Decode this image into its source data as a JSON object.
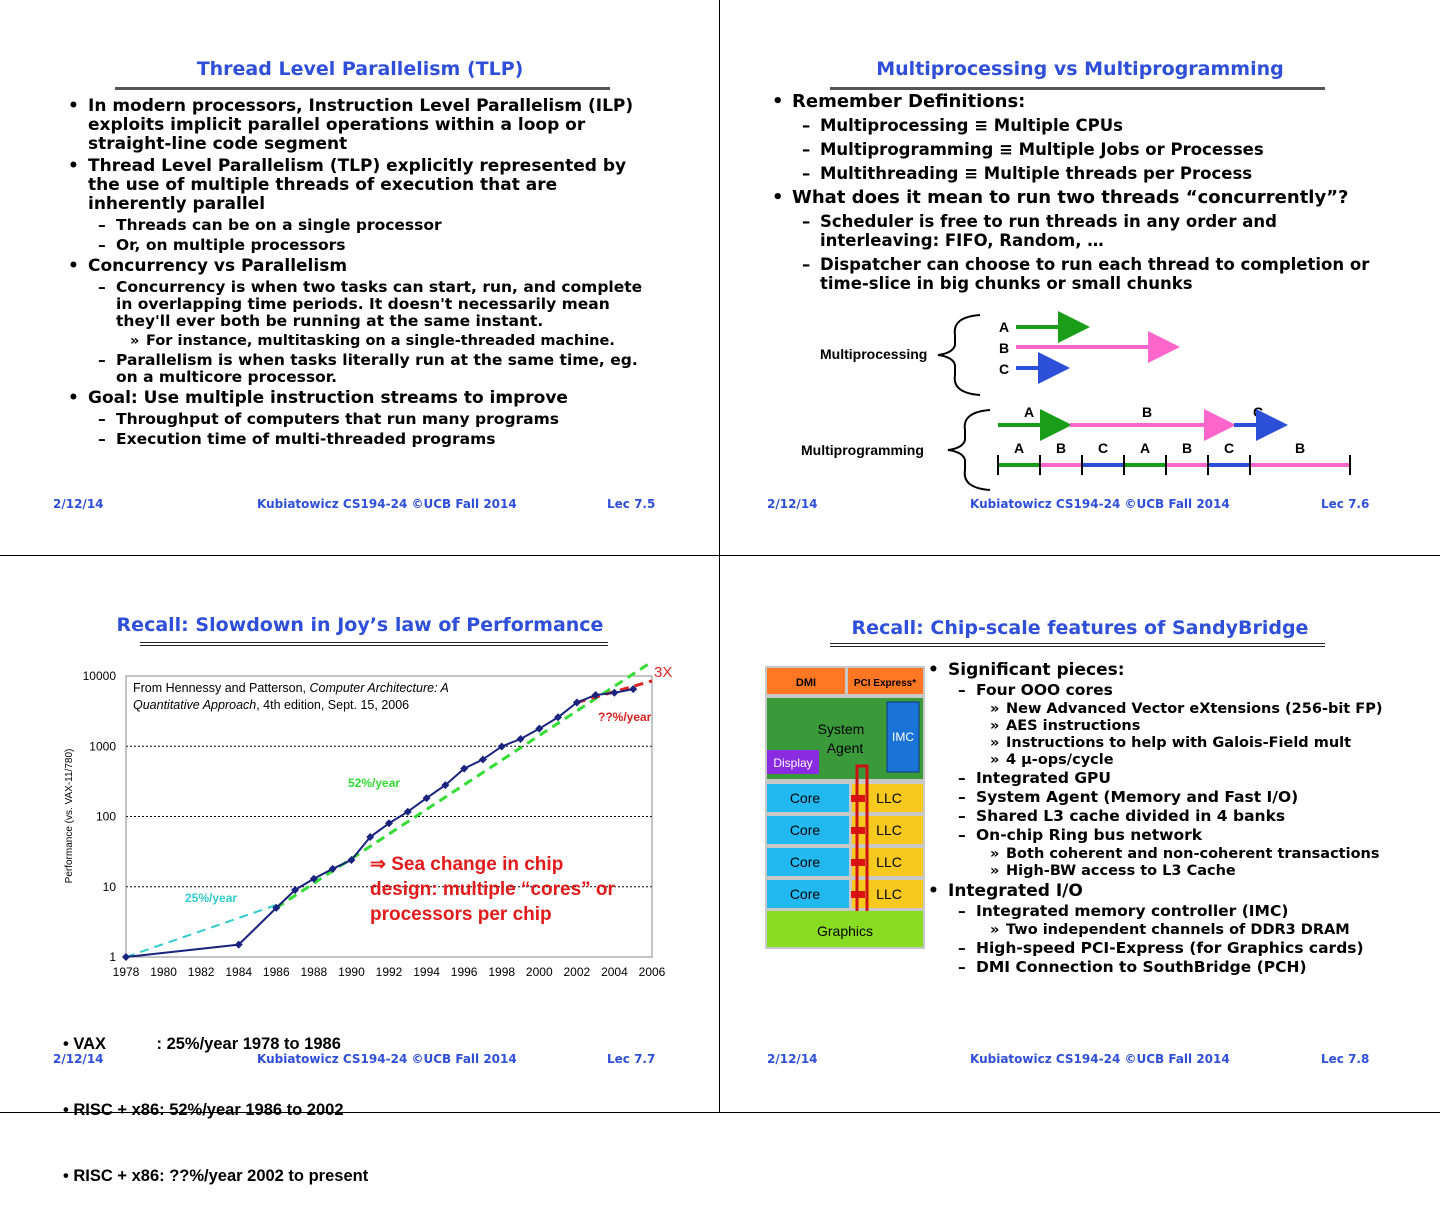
{
  "slides": [
    {
      "title": "Thread Level Parallelism (TLP)",
      "items": [
        {
          "level": 1,
          "text": "In modern processors, Instruction Level Parallelism (ILP) exploits implicit parallel operations within a loop or straight-line code segment"
        },
        {
          "level": 1,
          "text": "Thread Level Parallelism (TLP) explicitly represented by the use of multiple threads of execution that are inherently parallel"
        },
        {
          "level": 2,
          "text": "Threads can  be on a single processor"
        },
        {
          "level": 2,
          "text": "Or, on multiple processors"
        },
        {
          "level": 1,
          "text": "Concurrency vs Parallelism"
        },
        {
          "level": 2,
          "text": "Concurrency is when two tasks can start, run, and complete in overlapping time periods. It doesn't necessarily mean they'll ever both be running at the same instant."
        },
        {
          "level": 3,
          "text": "For instance, multitasking on a single-threaded machine."
        },
        {
          "level": 2,
          "text": "Parallelism is when tasks literally run at the same time, eg. on a multicore processor."
        },
        {
          "level": 1,
          "text": "Goal: Use multiple instruction streams to improve"
        },
        {
          "level": 2,
          "text": "Throughput of computers that run many programs"
        },
        {
          "level": 2,
          "text": "Execution time of multi-threaded programs"
        }
      ],
      "footer": {
        "date": "2/12/14",
        "course": "Kubiatowicz CS194-24 ©UCB Fall 2014",
        "lec": "Lec 7.5"
      }
    },
    {
      "title": "Multiprocessing vs Multiprogramming",
      "items": [
        {
          "level": 1,
          "text": "Remember Definitions:"
        },
        {
          "level": 2,
          "text": "Multiprocessing ≡ Multiple CPUs"
        },
        {
          "level": 2,
          "text": "Multiprogramming ≡ Multiple Jobs or Processes"
        },
        {
          "level": 2,
          "text": "Multithreading ≡ Multiple threads per Process"
        },
        {
          "level": 1,
          "text": "What does it mean to run two threads “concurrently”?"
        },
        {
          "level": 2,
          "text": "Scheduler is free to run threads in any order and interleaving: FIFO, Random, …"
        },
        {
          "level": 2,
          "text": "Dispatcher can choose to run each thread to completion or time-slice in big chunks or small chunks"
        }
      ],
      "diagram": {
        "multiprocessing_label": "Multiprocessing",
        "multiprogramming_label": "Multiprogramming",
        "threads": [
          "A",
          "B",
          "C"
        ],
        "sequential": [
          "A",
          "B",
          "C"
        ],
        "timeslices": [
          "A",
          "B",
          "C",
          "A",
          "B",
          "C",
          "B"
        ],
        "colors": {
          "A": "#1a9e1a",
          "B": "#ff66cc",
          "C": "#2b4fd6"
        }
      },
      "footer": {
        "date": "2/12/14",
        "course": "Kubiatowicz CS194-24 ©UCB Fall 2014",
        "lec": "Lec 7.6"
      }
    },
    {
      "title": "Recall: Slowdown in Joy’s law of Performance",
      "citation_line1_plain": "From Hennessy and Patterson, ",
      "citation_line1_italic": "Computer Architecture: A",
      "citation_line2_italic": "Quantitative Approach",
      "citation_line2_plain": ", 4th edition, Sept. 15, 2006",
      "callout": [
        "⇒ Sea change in chip",
        "design: multiple “cores” or",
        "processors per chip"
      ],
      "bullets": [
        "• VAX           : 25%/year 1978 to 1986",
        "• RISC + x86: 52%/year 1986 to 2002",
        "• RISC + x86: ??%/year 2002 to present"
      ],
      "chart_data": {
        "type": "line",
        "ylabel": "Performance (vs. VAX-11/780)",
        "yscale": "log",
        "ylim": [
          1,
          10000
        ],
        "yticks": [
          "1",
          "10",
          "100",
          "1000",
          "10000"
        ],
        "xlim": [
          1978,
          2006
        ],
        "xticks": [
          "1978",
          "1980",
          "1982",
          "1984",
          "1986",
          "1988",
          "1990",
          "1992",
          "1994",
          "1996",
          "1998",
          "2000",
          "2002",
          "2004",
          "2006"
        ],
        "series": [
          {
            "values": [
              [
                1978,
                1
              ],
              [
                1984,
                1.5
              ],
              [
                1986,
                5
              ],
              [
                1987,
                9
              ],
              [
                1988,
                13
              ],
              [
                1989,
                18
              ],
              [
                1990,
                24
              ],
              [
                1991,
                51
              ],
              [
                1992,
                80
              ],
              [
                1993,
                117
              ],
              [
                1994,
                183
              ],
              [
                1995,
                280
              ],
              [
                1996,
                481
              ],
              [
                1997,
                649
              ],
              [
                1998,
                993
              ],
              [
                1999,
                1267
              ],
              [
                2000,
                1779
              ],
              [
                2001,
                2584
              ],
              [
                2002,
                4195
              ],
              [
                2003,
                5364
              ],
              [
                2004,
                5764
              ],
              [
                2005,
                6505
              ]
            ],
            "color": "#1a237e"
          }
        ],
        "trendlines": [
          {
            "label": "25%/year",
            "from": [
              1978,
              1
            ],
            "to": [
              1986,
              5.5
            ],
            "color": "#33cccc"
          },
          {
            "label": "52%/year",
            "from": [
              1986,
              5
            ],
            "to": [
              2006,
              16000
            ],
            "color": "#33dd33"
          },
          {
            "label": "??%/year",
            "from": [
              2002,
              4195
            ],
            "to": [
              2006,
              8500
            ],
            "color": "#dd2222"
          }
        ],
        "annotation": "3X",
        "grid": "dotted horizontal"
      },
      "footer": {
        "date": "2/12/14",
        "course": "Kubiatowicz CS194-24 ©UCB Fall 2014",
        "lec": "Lec 7.7"
      }
    },
    {
      "title": "Recall: Chip-scale features of SandyBridge",
      "items": [
        {
          "level": 1,
          "text": "Significant pieces:"
        },
        {
          "level": 2,
          "text": "Four OOO cores"
        },
        {
          "level": 3,
          "text": "New Advanced Vector eXtensions (256-bit FP)"
        },
        {
          "level": 3,
          "text": "AES instructions"
        },
        {
          "level": 3,
          "text": "Instructions to help with Galois-Field mult"
        },
        {
          "level": 3,
          "text": "4 μ-ops/cycle"
        },
        {
          "level": 2,
          "text": "Integrated GPU"
        },
        {
          "level": 2,
          "text": "System Agent (Memory and Fast I/O)"
        },
        {
          "level": 2,
          "text": "Shared L3 cache divided in 4 banks"
        },
        {
          "level": 2,
          "text": "On-chip Ring bus network"
        },
        {
          "level": 3,
          "text": "Both coherent and non-coherent transactions"
        },
        {
          "level": 3,
          "text": "High-BW access to L3 Cache"
        },
        {
          "level": 1,
          "text": "Integrated I/O"
        },
        {
          "level": 2,
          "text": "Integrated memory controller (IMC)"
        },
        {
          "level": 3,
          "text": "Two independent channels of DDR3 DRAM"
        },
        {
          "level": 2,
          "text": "High-speed PCI-Express (for Graphics cards)"
        },
        {
          "level": 2,
          "text": "DMI Connection to SouthBridge (PCH)"
        }
      ],
      "chip": {
        "dmi": "DMI",
        "pci": "PCI Express*",
        "agent": "System Agent",
        "imc": "IMC",
        "display": "Display",
        "cores": [
          "Core",
          "Core",
          "Core",
          "Core"
        ],
        "llc": "LLC",
        "graphics": "Graphics"
      },
      "footer": {
        "date": "2/12/14",
        "course": "Kubiatowicz CS194-24 ©UCB Fall 2014",
        "lec": "Lec 7.8"
      }
    }
  ]
}
